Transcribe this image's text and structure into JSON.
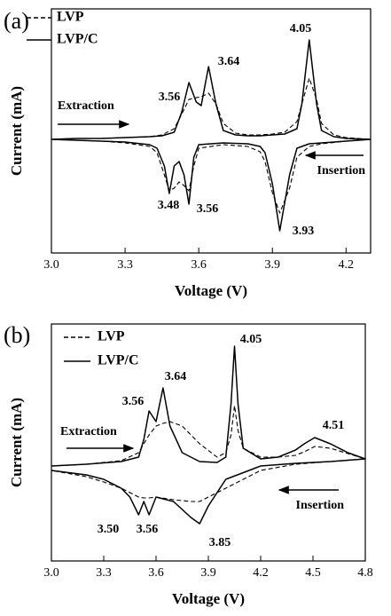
{
  "chart_data": [
    {
      "type": "line",
      "panel_label": "(a)",
      "xlabel": "Voltage (V)",
      "ylabel": "Current (mA)",
      "xlim": [
        3.0,
        4.3
      ],
      "xticks": [
        {
          "value": 3.0,
          "label": "3.0"
        },
        3.3,
        3.6,
        3.9,
        4.2
      ],
      "ylim": [
        -128,
        147
      ],
      "x": [
        3.0,
        3.1,
        3.2,
        3.3,
        3.4,
        3.45,
        3.5,
        3.53,
        3.56,
        3.59,
        3.61,
        3.64,
        3.67,
        3.7,
        3.75,
        3.8,
        3.85,
        3.9,
        3.95,
        4.0,
        4.02,
        4.05,
        4.08,
        4.1,
        4.15,
        4.2,
        4.3,
        4.3,
        4.2,
        4.1,
        4.05,
        4.0,
        3.97,
        3.93,
        3.9,
        3.87,
        3.85,
        3.8,
        3.7,
        3.6,
        3.58,
        3.56,
        3.54,
        3.52,
        3.5,
        3.48,
        3.46,
        3.43,
        3.4,
        3.3,
        3.2,
        3.1,
        3.0
      ],
      "series": [
        {
          "name": "LVP",
          "color": "#000000",
          "linestyle": "dashed",
          "values": [
            0,
            1,
            1,
            2,
            3,
            5,
            12,
            28,
            45,
            47,
            48,
            52,
            40,
            18,
            7,
            5,
            5,
            6,
            8,
            20,
            40,
            69,
            45,
            18,
            5,
            2,
            0,
            0,
            -2,
            -5,
            -8,
            -20,
            -55,
            -83,
            -60,
            -25,
            -14,
            -8,
            -6,
            -10,
            -30,
            -58,
            -52,
            -48,
            -55,
            -58,
            -40,
            -15,
            -8,
            -4,
            -2,
            -1,
            0
          ]
        },
        {
          "name": "LVP/C",
          "color": "#000000",
          "linestyle": "solid",
          "values": [
            0,
            1,
            1,
            2,
            3,
            4,
            8,
            30,
            64,
            42,
            38,
            82,
            40,
            10,
            5,
            4,
            4,
            5,
            6,
            12,
            40,
            112,
            40,
            10,
            3,
            1,
            0,
            0,
            -2,
            -4,
            -5,
            -10,
            -40,
            -103,
            -50,
            -15,
            -8,
            -5,
            -4,
            -6,
            -20,
            -73,
            -40,
            -25,
            -30,
            -61,
            -30,
            -10,
            -6,
            -3,
            -2,
            -1,
            0
          ]
        }
      ],
      "annotations": [
        "3.56",
        "3.64",
        "4.05",
        "3.48",
        "3.56",
        "3.93",
        "Extraction",
        "Insertion"
      ]
    },
    {
      "type": "line",
      "panel_label": "(b)",
      "xlabel": "Voltage (V)",
      "ylabel": "Current (mA)",
      "xlim": [
        3.0,
        4.8
      ],
      "xticks": [
        {
          "value": 3.0,
          "label": "3.0"
        },
        3.3,
        3.6,
        3.9,
        4.2,
        4.5,
        4.8
      ],
      "ylim": [
        -107,
        160
      ],
      "x": [
        3.0,
        3.2,
        3.4,
        3.5,
        3.53,
        3.56,
        3.6,
        3.64,
        3.68,
        3.75,
        3.85,
        3.95,
        4.0,
        4.03,
        4.05,
        4.07,
        4.1,
        4.2,
        4.3,
        4.4,
        4.45,
        4.51,
        4.6,
        4.7,
        4.8,
        4.8,
        4.6,
        4.4,
        4.2,
        4.0,
        3.9,
        3.85,
        3.8,
        3.7,
        3.6,
        3.56,
        3.53,
        3.5,
        3.45,
        3.4,
        3.3,
        3.2,
        3.0
      ],
      "series": [
        {
          "name": "LVP",
          "color": "#000000",
          "linestyle": "dashed",
          "values": [
            0,
            2,
            6,
            15,
            25,
            35,
            45,
            48,
            50,
            45,
            25,
            10,
            15,
            35,
            68,
            40,
            20,
            10,
            10,
            12,
            16,
            22,
            20,
            14,
            8,
            8,
            5,
            2,
            -5,
            -25,
            -35,
            -40,
            -40,
            -38,
            -35,
            -36,
            -36,
            -35,
            -30,
            -25,
            -18,
            -12,
            -5
          ]
        },
        {
          "name": "LVP/C",
          "color": "#000000",
          "linestyle": "solid",
          "values": [
            0,
            2,
            5,
            10,
            30,
            62,
            50,
            88,
            45,
            15,
            5,
            4,
            10,
            70,
            135,
            70,
            20,
            8,
            10,
            18,
            25,
            32,
            25,
            15,
            8,
            8,
            5,
            3,
            0,
            -15,
            -45,
            -65,
            -58,
            -40,
            -35,
            -55,
            -40,
            -55,
            -35,
            -25,
            -15,
            -10,
            -5
          ]
        }
      ],
      "annotations": [
        "3.56",
        "3.64",
        "4.05",
        "4.51",
        "3.50",
        "3.56",
        "3.85",
        "Extraction",
        "Insertion"
      ]
    }
  ]
}
